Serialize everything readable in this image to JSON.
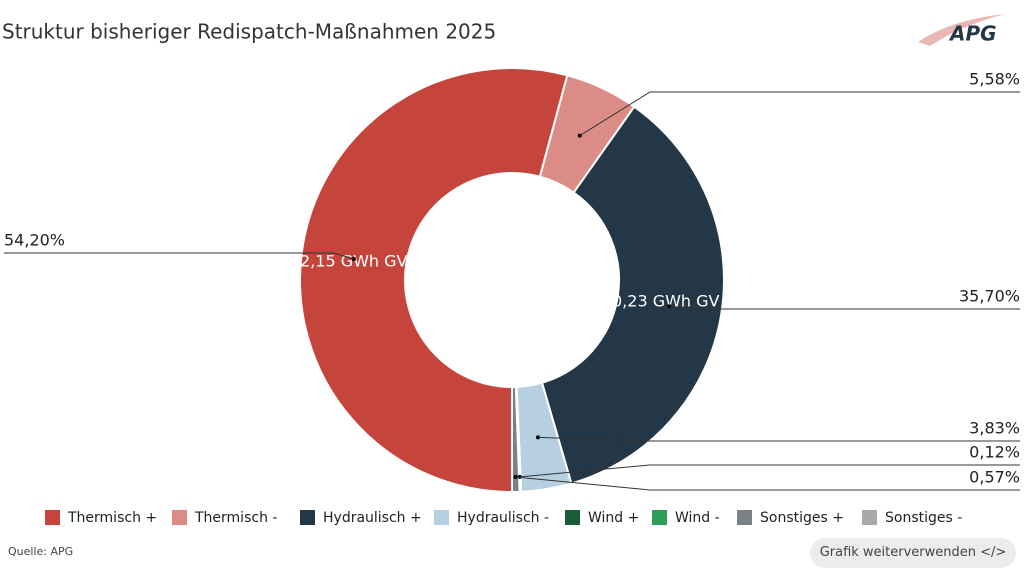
{
  "chart_data": {
    "type": "donut",
    "title": "Struktur bisheriger Redispatch-Maßnahmen 2025",
    "categories": [
      "Thermisch +",
      "Thermisch -",
      "Hydraulisch +",
      "Hydraulisch -",
      "Wind +",
      "Wind -",
      "Sonstiges +",
      "Sonstiges -"
    ],
    "values": [
      54.2,
      5.58,
      35.7,
      3.83,
      0.12,
      0,
      0.57,
      0
    ],
    "value_labels": [
      "54,20%",
      "5,58%",
      "35,70%",
      "3,83%",
      "0,12%",
      null,
      "0,57%",
      null
    ],
    "colors": [
      "#c5453c",
      "#dc8c86",
      "#243746",
      "#b6d0e2",
      "#1a5c35",
      "#2e9e5b",
      "#7a8288",
      "#a9a9a9"
    ],
    "annotations": [
      "2,15 GWh GV",
      "0,23 GWh GV"
    ],
    "logo": "APG",
    "source": "Quelle: APG",
    "button": "Grafik weiterverwenden </>"
  }
}
